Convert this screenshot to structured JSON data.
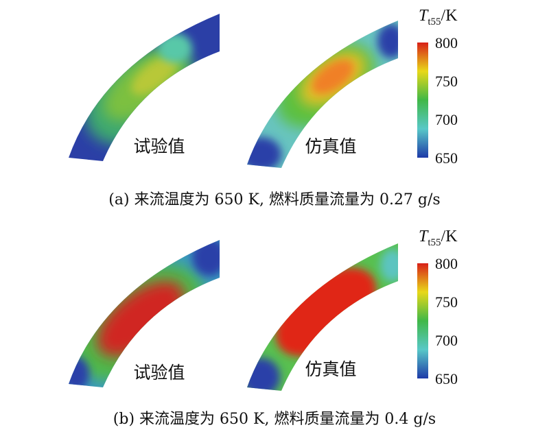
{
  "panels": [
    {
      "caption": "(a) 来流温度为 650 K, 燃料质量流量为 0.27 g/s",
      "plots": [
        {
          "label": "试验值"
        },
        {
          "label": "仿真值"
        }
      ],
      "colorbar": {
        "title_main": "T",
        "title_sub": "t55",
        "title_unit": "/K",
        "ticks": [
          "800",
          "750",
          "700",
          "650"
        ],
        "range": [
          650,
          800
        ]
      }
    },
    {
      "caption": "(b) 来流温度为 650 K, 燃料质量流量为 0.4 g/s",
      "plots": [
        {
          "label": "试验值"
        },
        {
          "label": "仿真值"
        }
      ],
      "colorbar": {
        "title_main": "T",
        "title_sub": "t55",
        "title_unit": "/K",
        "ticks": [
          "800",
          "750",
          "700",
          "650"
        ],
        "range": [
          650,
          800
        ]
      }
    }
  ],
  "colors": {
    "cold": "#2a3ea8",
    "cool": "#5cc4c4",
    "mid": "#58c048",
    "warm": "#d8d018",
    "hot": "#f08020",
    "max": "#e02818"
  }
}
